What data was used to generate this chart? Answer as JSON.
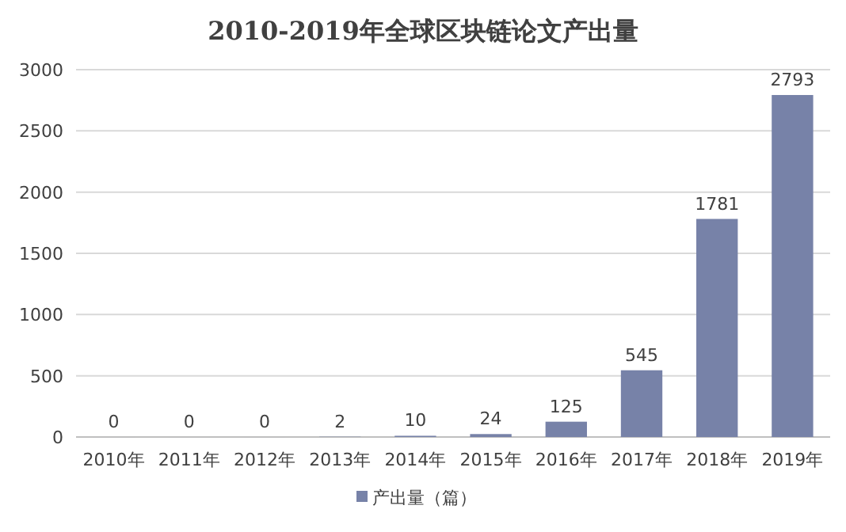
{
  "chart_data": {
    "type": "bar",
    "title": "2010-2019年全球区块链论文产出量",
    "categories": [
      "2010年",
      "2011年",
      "2012年",
      "2013年",
      "2014年",
      "2015年",
      "2016年",
      "2017年",
      "2018年",
      "2019年"
    ],
    "series": [
      {
        "name": "产出量（篇）",
        "color": "#7782a8",
        "values": [
          0,
          0,
          0,
          2,
          10,
          24,
          125,
          545,
          1781,
          2793
        ]
      }
    ],
    "ylim": [
      0,
      3000
    ],
    "yticks": [
      0,
      500,
      1000,
      1500,
      2000,
      2500,
      3000
    ],
    "grid": "y",
    "legend": "bottom",
    "data_labels": true
  }
}
